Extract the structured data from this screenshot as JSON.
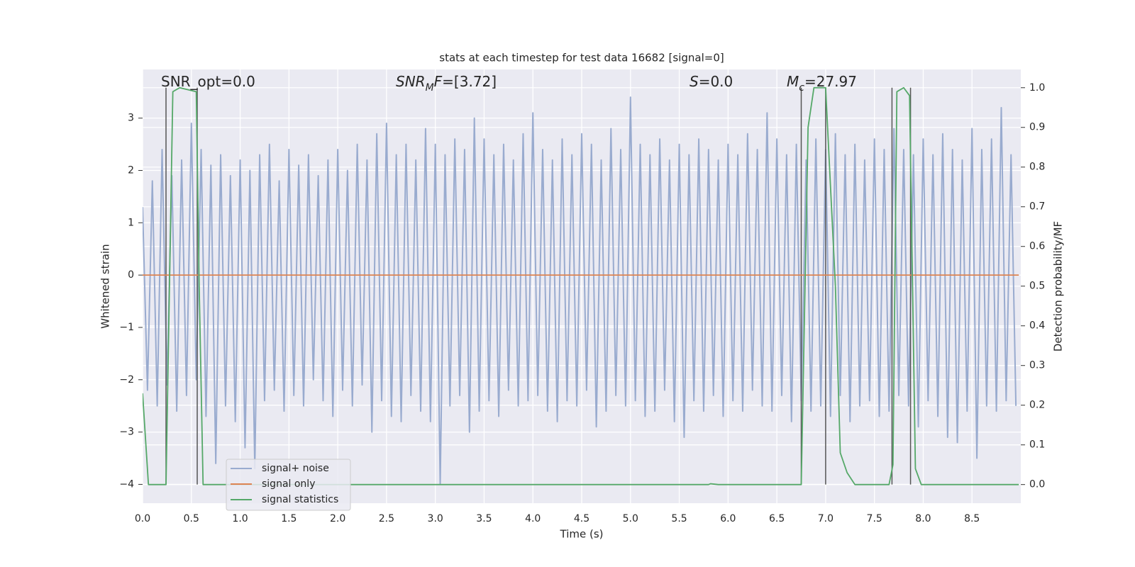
{
  "chart_data": {
    "type": "line",
    "title": "stats at each timestep for test data 16682 [signal=0]",
    "xlabel": "Time (s)",
    "ylabel": "Whitened strain",
    "y2label": "Detection probability/MF",
    "xlim": [
      0,
      9.0
    ],
    "ylim": [
      -4.36,
      3.93
    ],
    "y2lim": [
      -0.047,
      1.046
    ],
    "xticks": [
      {
        "value": 0,
        "label": "0.0"
      },
      0.5,
      {
        "value": 1,
        "label": "1.0"
      },
      1.5,
      {
        "value": 2,
        "label": "2.0"
      },
      2.5,
      {
        "value": 3,
        "label": "3.0"
      },
      3.5,
      {
        "value": 4,
        "label": "4.0"
      },
      4.5,
      {
        "value": 5,
        "label": "5.0"
      },
      5.5,
      {
        "value": 6,
        "label": "6.0"
      },
      6.5,
      {
        "value": 7,
        "label": "7.0"
      },
      7.5,
      {
        "value": 8,
        "label": "8.0"
      },
      8.5
    ],
    "yticks": [
      {
        "value": -4,
        "label": "−4"
      },
      {
        "value": -3,
        "label": "−3"
      },
      {
        "value": -2,
        "label": "−2"
      },
      {
        "value": -1,
        "label": "−1"
      },
      0,
      1,
      2,
      3
    ],
    "y2ticks": [
      {
        "value": 0,
        "label": "0.0"
      },
      0.1,
      0.2,
      0.3,
      0.4,
      0.5,
      0.6,
      0.7,
      0.8,
      0.9,
      {
        "value": 1,
        "label": "1.0"
      }
    ],
    "grid": true,
    "y2grid": true,
    "legend": "lower left",
    "annotations": [
      {
        "segments": [
          {
            "text": "SNR_opt=0.0"
          }
        ]
      },
      {
        "segments": [
          {
            "text": "SNR",
            "italic": true
          },
          {
            "text": "M",
            "italic": true,
            "sub": true
          },
          {
            "text": "F",
            "italic": true
          },
          {
            "text": "=[3.72]"
          }
        ]
      },
      {
        "segments": [
          {
            "text": "S",
            "italic": true
          },
          {
            "text": "=0.0"
          }
        ]
      },
      {
        "segments": [
          {
            "text": "M",
            "italic": true
          },
          {
            "text": "c",
            "italic": true,
            "sub": true
          },
          {
            "text": "=27.97"
          }
        ]
      }
    ],
    "vlines": {
      "x": [
        0.24,
        0.56,
        6.75,
        7.0,
        7.68,
        7.87
      ],
      "ymin": 0,
      "ymax": 1,
      "axis": "y2",
      "color": "#555555"
    },
    "series": [
      {
        "name": "signal+ noise",
        "color": "#99abcf",
        "x": [
          0,
          0.05,
          0.1,
          0.15,
          0.2,
          0.25,
          0.3,
          0.35,
          0.4,
          0.45,
          0.5,
          0.55,
          0.6,
          0.65,
          0.7,
          0.75,
          0.8,
          0.85,
          0.9,
          0.95,
          1.0,
          1.05,
          1.1,
          1.15,
          1.2,
          1.25,
          1.3,
          1.35,
          1.4,
          1.45,
          1.5,
          1.55,
          1.6,
          1.65,
          1.7,
          1.75,
          1.8,
          1.85,
          1.9,
          1.95,
          2.0,
          2.05,
          2.1,
          2.15,
          2.2,
          2.25,
          2.3,
          2.35,
          2.4,
          2.45,
          2.5,
          2.55,
          2.6,
          2.65,
          2.7,
          2.75,
          2.8,
          2.85,
          2.9,
          2.95,
          3.0,
          3.05,
          3.1,
          3.15,
          3.2,
          3.25,
          3.3,
          3.35,
          3.4,
          3.45,
          3.5,
          3.55,
          3.6,
          3.65,
          3.7,
          3.75,
          3.8,
          3.85,
          3.9,
          3.95,
          4.0,
          4.05,
          4.1,
          4.15,
          4.2,
          4.25,
          4.3,
          4.35,
          4.4,
          4.45,
          4.5,
          4.55,
          4.6,
          4.65,
          4.7,
          4.75,
          4.8,
          4.85,
          4.9,
          4.95,
          5.0,
          5.05,
          5.1,
          5.15,
          5.2,
          5.25,
          5.3,
          5.35,
          5.4,
          5.45,
          5.5,
          5.55,
          5.6,
          5.65,
          5.7,
          5.75,
          5.8,
          5.85,
          5.9,
          5.95,
          6.0,
          6.05,
          6.1,
          6.15,
          6.2,
          6.25,
          6.3,
          6.35,
          6.4,
          6.45,
          6.5,
          6.55,
          6.6,
          6.65,
          6.7,
          6.75,
          6.8,
          6.85,
          6.9,
          6.95,
          7.0,
          7.05,
          7.1,
          7.15,
          7.2,
          7.25,
          7.3,
          7.35,
          7.4,
          7.45,
          7.5,
          7.55,
          7.6,
          7.65,
          7.7,
          7.75,
          7.8,
          7.85,
          7.9,
          7.95,
          8.0,
          8.05,
          8.1,
          8.15,
          8.2,
          8.25,
          8.3,
          8.35,
          8.4,
          8.45,
          8.5,
          8.55,
          8.6,
          8.65,
          8.7,
          8.75,
          8.8,
          8.85,
          8.9,
          8.95
        ],
        "values": [
          1.3,
          -2.2,
          1.8,
          -2.5,
          2.4,
          -2.1,
          1.9,
          -2.6,
          2.2,
          -2.3,
          2.9,
          -2.0,
          2.4,
          -2.7,
          2.1,
          -3.6,
          2.3,
          -2.5,
          1.9,
          -2.8,
          2.2,
          -3.3,
          2.0,
          -3.7,
          2.3,
          -2.4,
          2.5,
          -2.2,
          1.8,
          -2.6,
          2.4,
          -2.3,
          2.1,
          -2.5,
          2.3,
          -2.0,
          1.9,
          -2.4,
          2.2,
          -2.7,
          2.4,
          -2.2,
          2.0,
          -2.5,
          2.5,
          -2.1,
          2.2,
          -3.0,
          2.7,
          -2.4,
          2.9,
          -2.7,
          2.3,
          -2.8,
          2.5,
          -2.3,
          2.2,
          -2.6,
          2.8,
          -2.8,
          2.5,
          -4.0,
          2.3,
          -2.5,
          2.6,
          -2.3,
          2.4,
          -3.0,
          3.0,
          -2.6,
          2.6,
          -2.4,
          2.3,
          -2.7,
          2.5,
          -2.2,
          2.2,
          -2.5,
          2.7,
          -2.4,
          3.1,
          -2.3,
          2.4,
          -2.6,
          2.2,
          -2.8,
          2.6,
          -2.4,
          2.3,
          -2.5,
          2.7,
          -2.2,
          2.5,
          -2.9,
          2.2,
          -2.6,
          2.8,
          -2.3,
          2.4,
          -2.5,
          3.4,
          -2.4,
          2.5,
          -2.7,
          2.3,
          -2.6,
          2.6,
          -2.2,
          2.2,
          -2.8,
          2.5,
          -3.1,
          2.3,
          -2.4,
          2.6,
          -2.6,
          2.4,
          -2.3,
          2.2,
          -2.7,
          2.5,
          -2.4,
          2.3,
          -2.6,
          2.7,
          -2.2,
          2.4,
          -2.5,
          3.1,
          -2.6,
          2.6,
          -2.3,
          2.3,
          -2.8,
          2.5,
          -2.4,
          2.2,
          -2.6,
          2.6,
          -2.5,
          2.4,
          -2.7,
          2.7,
          -2.3,
          2.3,
          -2.8,
          2.5,
          -2.5,
          2.2,
          -2.4,
          2.6,
          -2.7,
          2.4,
          -2.6,
          2.8,
          -2.3,
          2.4,
          -2.5,
          2.3,
          -2.9,
          2.6,
          -2.4,
          2.3,
          -2.7,
          2.7,
          -3.1,
          2.4,
          -3.2,
          2.2,
          -2.6,
          2.8,
          -3.5,
          2.4,
          -2.5,
          2.6,
          -2.6,
          3.2,
          -2.4,
          2.3,
          -2.5
        ]
      },
      {
        "name": "signal only",
        "color": "#dd8452",
        "x": [
          0,
          8.98
        ],
        "values": [
          0,
          0
        ]
      },
      {
        "name": "signal statistics",
        "color": "#55a868",
        "axis": "y2",
        "x": [
          0,
          0.06,
          0.24,
          0.31,
          0.38,
          0.55,
          0.58,
          0.62,
          5.8,
          5.82,
          5.9,
          6.75,
          6.82,
          6.88,
          7.0,
          7.1,
          7.15,
          7.22,
          7.3,
          7.65,
          7.69,
          7.73,
          7.8,
          7.86,
          7.92,
          7.98,
          8.98
        ],
        "values": [
          0.23,
          0.0,
          0.0,
          0.99,
          1.0,
          0.99,
          0.5,
          0.0,
          0.0,
          0.002,
          0.0,
          0.0,
          0.9,
          1.0,
          1.0,
          0.5,
          0.08,
          0.03,
          0.0,
          0.0,
          0.05,
          0.99,
          1.0,
          0.98,
          0.04,
          0.0,
          0.0
        ]
      }
    ]
  }
}
